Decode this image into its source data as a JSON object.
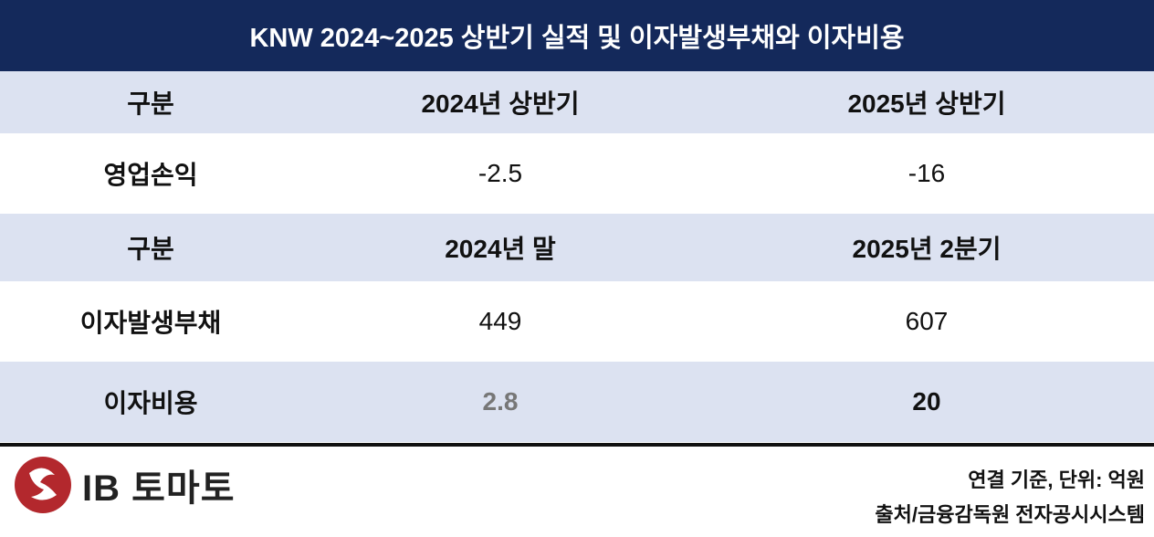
{
  "title": "KNW 2024~2025 상반기 실적 및 이자발생부채와 이자비용",
  "table": {
    "rows": [
      [
        "구분",
        "2024년 상반기",
        "2025년 상반기"
      ],
      [
        "영업손익",
        "-2.5",
        "-16"
      ],
      [
        "구분",
        "2024년 말",
        "2025년 2분기"
      ],
      [
        "이자발생부채",
        "449",
        "607"
      ],
      [
        "이자비용",
        "2.8",
        "20"
      ]
    ]
  },
  "footer": {
    "logo": "IB 토마토",
    "note": "연결 기준, 단위: 억원",
    "source": "출처/금융감독원 전자공시시스템"
  }
}
